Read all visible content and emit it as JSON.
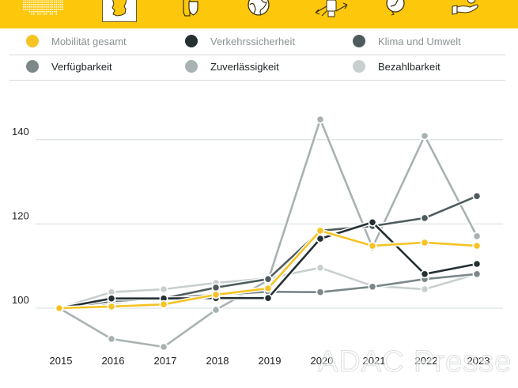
{
  "header": {
    "icons": [
      {
        "name": "germany-dotted-map-icon",
        "selected": false
      },
      {
        "name": "germany-outline-icon",
        "selected": true
      },
      {
        "name": "car-shield-icon",
        "selected": false
      },
      {
        "name": "globe-icon",
        "selected": false
      },
      {
        "name": "car-arrows-icon",
        "selected": false
      },
      {
        "name": "clock-refresh-icon",
        "selected": false
      },
      {
        "name": "hand-coin-icon",
        "selected": false
      }
    ],
    "accent_color": "#fdc80b"
  },
  "legend": {
    "items": [
      {
        "label": "Mobilität gesamt",
        "color": "#f6c324"
      },
      {
        "label": "Verkehrssicherheit",
        "color": "#263033"
      },
      {
        "label": "Klima und Umwelt",
        "color": "#4f5c5e"
      },
      {
        "label": "Verfügbarkeit",
        "color": "#7b8788"
      },
      {
        "label": "Zuverlässigkeit",
        "color": "#a9b2b2"
      },
      {
        "label": "Bezahlbarkeit",
        "color": "#c8cfce"
      }
    ]
  },
  "watermark": "ADAC Presse",
  "chart_data": {
    "type": "line",
    "title": "",
    "xlabel": "",
    "ylabel": "",
    "x": [
      "2015",
      "2016",
      "2017",
      "2018",
      "2019",
      "2020",
      "2021",
      "2022",
      "2023"
    ],
    "ylim": [
      89,
      148
    ],
    "yticks": [
      100,
      120,
      140
    ],
    "ytick_labels": [
      "100",
      "120",
      "140"
    ],
    "grid": true,
    "legend_position": "top",
    "series": [
      {
        "name": "Zuverlässigkeit",
        "color": "#a9b2b2",
        "values": [
          100,
          92.7,
          90.8,
          99.6,
          106.6,
          144.8,
          114.4,
          140.9,
          117.1
        ]
      },
      {
        "name": "Bezahlbarkeit",
        "color": "#c8cfce",
        "values": [
          100,
          103.8,
          104.5,
          106.0,
          107.1,
          109.6,
          105.3,
          104.5,
          108.1
        ]
      },
      {
        "name": "Verfügbarkeit",
        "color": "#7b8788",
        "values": [
          100,
          101.3,
          102.4,
          103.2,
          103.9,
          103.8,
          105.1,
          106.9,
          108.1
        ]
      },
      {
        "name": "Klima und Umwelt",
        "color": "#4f5c5e",
        "values": [
          100,
          101.7,
          102.3,
          104.9,
          106.9,
          118.4,
          119.5,
          121.4,
          126.6
        ]
      },
      {
        "name": "Verkehrssicherheit",
        "color": "#263033",
        "values": [
          100,
          102.3,
          102.3,
          102.4,
          102.4,
          116.5,
          120.4,
          108.1,
          110.5
        ]
      },
      {
        "name": "Mobilität gesamt",
        "color": "#f6c324",
        "values": [
          100,
          100.4,
          100.9,
          103.2,
          104.7,
          118.4,
          114.8,
          115.6,
          114.8
        ]
      }
    ]
  }
}
